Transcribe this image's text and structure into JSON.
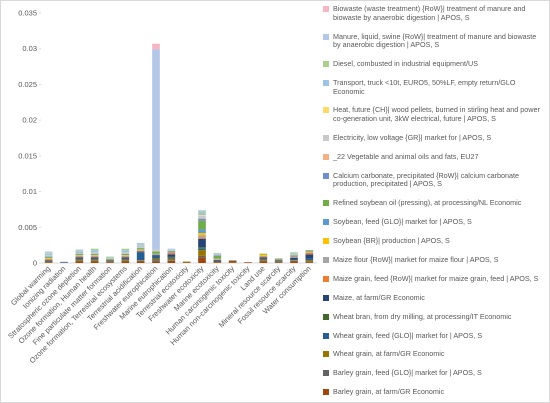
{
  "chart_data": {
    "type": "bar",
    "stacked": true,
    "categories": [
      "Global warming",
      "Ionizing radiation",
      "Stratospheric ozone depletion",
      "Ozone formation, Human health",
      "Fine particulate matter formation",
      "Ozone formation, Terrestrial ecosystems",
      "Terrestrial acidification",
      "Freshwater eutrophication",
      "Marine eutrophication",
      "Terrestrial ecotoxicity",
      "Freshwater ecotoxicity",
      "Marine ecotoxicity",
      "Human carcinogenic toxicity",
      "Human non-carcinogenic toxicity",
      "Land use",
      "Mineral resource scarcity",
      "Fossil resource scarcity",
      "Water consumption"
    ],
    "ylim": [
      0,
      0.035
    ],
    "yticks": [
      0,
      0.005,
      0.01,
      0.015,
      0.02,
      0.025,
      0.03,
      0.035
    ],
    "grid": false,
    "series": [
      {
        "name": "Biowaste (waste treatment) {RoW}| treatment of manure and biowaste by anaerobic digestion | APOS, S",
        "color": "#f4b6c2",
        "values": [
          0,
          0,
          0,
          0,
          0,
          0,
          0,
          0.0008,
          0,
          0,
          0,
          0,
          0,
          0,
          0,
          0,
          0,
          0
        ]
      },
      {
        "name": "Manure, liquid, swine {RoW}| treatment of manure and biowaste by anaerobic digestion | APOS, S",
        "color": "#b4c7e7",
        "values": [
          0.0003,
          0,
          0.0002,
          0,
          0,
          0,
          0.0003,
          0.028,
          0.0002,
          0,
          0.0002,
          0,
          0,
          0,
          0,
          0,
          0,
          0
        ]
      },
      {
        "name": "Diesel, combusted in industrial equipment/US",
        "color": "#a9d18e",
        "values": [
          0.0001,
          0,
          0.0001,
          0.0002,
          0.0001,
          0.0002,
          0.0001,
          0,
          0,
          0,
          0.0002,
          0.0001,
          0,
          0,
          0,
          0,
          0.0001,
          0
        ]
      },
      {
        "name": "Transport, truck <10t, EURO5, 50%LF, empty return/GLO Economic",
        "color": "#9dc3e6",
        "values": [
          0.0001,
          0,
          0.0002,
          0.0003,
          0.0001,
          0.0003,
          0.0001,
          0,
          0,
          0,
          0.0003,
          0.0001,
          0,
          0,
          0,
          0,
          0.0001,
          0
        ]
      },
      {
        "name": "Heat, future {CH}| wood pellets, burned in stirling heat and power co-generation unit, 3kW electrical, future | APOS, S",
        "color": "#ffd966",
        "values": [
          0,
          0,
          0,
          0,
          0,
          0,
          0,
          0,
          0,
          0,
          0.0001,
          0,
          0,
          0,
          0,
          0,
          0,
          0
        ]
      },
      {
        "name": "Electricity, low voltage {GR}| market for | APOS, S",
        "color": "#c9c9c9",
        "values": [
          0.0002,
          0.0001,
          0.0001,
          0.0002,
          0.0001,
          0.0002,
          0.0002,
          0.0003,
          0.0001,
          0,
          0.0003,
          0.0001,
          0,
          0,
          0,
          0.0001,
          0.0002,
          0
        ]
      },
      {
        "name": "_22 Vegetable and animal oils and fats, EU27",
        "color": "#f4b183",
        "values": [
          0,
          0,
          0,
          0,
          0,
          0,
          0,
          0,
          0,
          0,
          0.0001,
          0,
          0,
          0,
          0,
          0,
          0,
          0
        ]
      },
      {
        "name": "Calcium carbonate, precipitated {RoW}| calcium carbonate production, precipitated | APOS, S",
        "color": "#6f8fd0",
        "values": [
          0,
          0,
          0,
          0,
          0,
          0,
          0,
          0,
          0,
          0,
          0.0003,
          0.0001,
          0,
          0,
          0,
          0,
          0,
          0
        ]
      },
      {
        "name": "Refined soybean oil (pressing), at processing/NL Economic",
        "color": "#70ad47",
        "values": [
          0.0001,
          0,
          0.0001,
          0.0001,
          0.0001,
          0.0001,
          0.0001,
          0.0003,
          0.0001,
          0,
          0.0012,
          0.0003,
          0,
          0,
          0.0001,
          0.0001,
          0.0001,
          0.0001
        ]
      },
      {
        "name": "Soybean, feed {GLO}| market for | APOS, S",
        "color": "#5b9bd5",
        "values": [
          0.0001,
          0,
          0.0001,
          0.0001,
          0,
          0.0001,
          0.0001,
          0,
          0.0001,
          0,
          0.0005,
          0.0001,
          0,
          0,
          0,
          0,
          0.0001,
          0.0001
        ]
      },
      {
        "name": "Soybean {BR}| production | APOS, S",
        "color": "#ffc000",
        "values": [
          0.0001,
          0,
          0.0001,
          0.0001,
          0,
          0.0001,
          0.0001,
          0,
          0,
          0,
          0.0003,
          0.0001,
          0,
          0,
          0.0002,
          0,
          0,
          0.0001
        ]
      },
      {
        "name": "Maize flour {RoW}| market for maize flour | APOS, S",
        "color": "#a5a5a5",
        "values": [
          0.0001,
          0,
          0.0001,
          0.0001,
          0.0001,
          0.0001,
          0.0001,
          0.0002,
          0.0001,
          0,
          0.0003,
          0.0001,
          0,
          0,
          0.0001,
          0.0001,
          0.0001,
          0.0001
        ]
      },
      {
        "name": "Maize grain, feed {RoW}| market for maize grain, feed | APOS, S",
        "color": "#ed7d31",
        "values": [
          0.0001,
          0,
          0.0001,
          0.0001,
          0,
          0.0001,
          0.0001,
          0,
          0.0002,
          0,
          0.0002,
          0,
          0.0001,
          0,
          0.0001,
          0,
          0.0001,
          0.0002
        ]
      },
      {
        "name": "Maize, at farm/GR Economic",
        "color": "#264478",
        "values": [
          0.0001,
          0.0001,
          0.0002,
          0.0002,
          0.0001,
          0.0002,
          0.0001,
          0.0002,
          0.0003,
          0,
          0.0012,
          0.0002,
          0.0001,
          0,
          0.0002,
          0.0001,
          0.0002,
          0.0006
        ]
      },
      {
        "name": "Wheat bran, from dry milling, at processing/IT Economic",
        "color": "#43682b",
        "values": [
          0,
          0,
          0,
          0,
          0,
          0,
          0,
          0,
          0.0001,
          0,
          0.0002,
          0,
          0,
          0,
          0,
          0,
          0,
          0
        ]
      },
      {
        "name": "Wheat grain, feed {GLO}| market for | APOS, S",
        "color": "#255e91",
        "values": [
          0.0001,
          0,
          0.0001,
          0.0001,
          0,
          0.0001,
          0.0011,
          0.0003,
          0.0002,
          0,
          0.0002,
          0,
          0,
          0,
          0.0001,
          0,
          0.0001,
          0.0002
        ]
      },
      {
        "name": "Wheat grain, at farm/GR Economic",
        "color": "#997300",
        "values": [
          0.0001,
          0,
          0.0002,
          0.0002,
          0.0001,
          0.0002,
          0.0001,
          0.0002,
          0.0002,
          0.0001,
          0.0008,
          0.0001,
          0.0001,
          0,
          0.0002,
          0.0001,
          0.0001,
          0.0002
        ]
      },
      {
        "name": "Barley grain, feed {GLO}| market for | APOS, S",
        "color": "#636363",
        "values": [
          0,
          0,
          0.0001,
          0.0001,
          0.0001,
          0.0001,
          0.0001,
          0.0002,
          0.0001,
          0,
          0.0002,
          0,
          0,
          0,
          0.0001,
          0.0001,
          0.0001,
          0.0001
        ]
      },
      {
        "name": "Barley grain, at farm/GR Economic",
        "color": "#9e480e",
        "values": [
          0.0001,
          0,
          0.0002,
          0.0002,
          0.0001,
          0.0002,
          0.0002,
          0.0002,
          0.0003,
          0.0001,
          0.0008,
          0.0001,
          0.0001,
          0.0001,
          0.0002,
          0.0001,
          0.0002,
          0.0001
        ]
      }
    ]
  }
}
